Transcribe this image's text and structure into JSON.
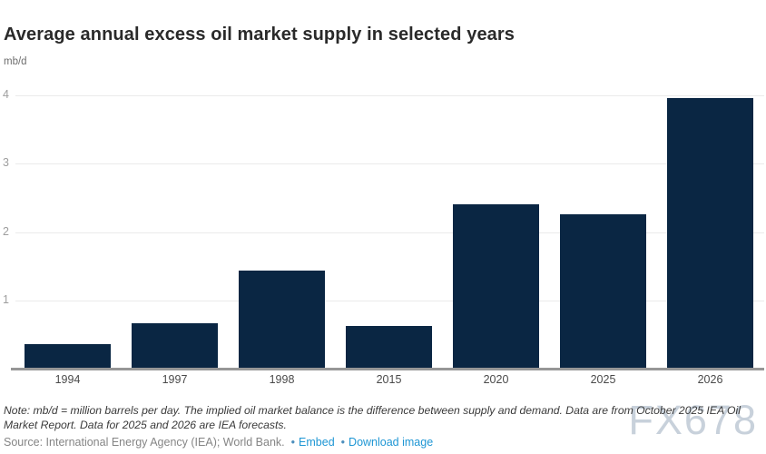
{
  "header": {
    "title": "Average annual excess oil market supply in selected years",
    "unit_label": "mb/d"
  },
  "chart_data": {
    "type": "bar",
    "categories": [
      "1994",
      "1997",
      "1998",
      "2015",
      "2020",
      "2025",
      "2026"
    ],
    "values": [
      0.36,
      0.66,
      1.43,
      0.62,
      2.4,
      2.26,
      3.96
    ],
    "title": "Average annual excess oil market supply in selected years",
    "xlabel": "",
    "ylabel": "mb/d",
    "ylim": [
      0,
      4
    ],
    "yticks": [
      1,
      2,
      3,
      4
    ],
    "grid": "horizontal",
    "legend": "none",
    "bar_color": "#0a2643",
    "gridline_color": "#ebebeb",
    "axis_line_color": "#979797"
  },
  "footer": {
    "note": "Note: mb/d = million barrels per day. The implied oil market balance is the difference between supply and demand. Data are from October 2025 IEA Oil Market Report. Data for 2025 and 2026 are IEA forecasts.",
    "source_prefix": "Source: International Energy Agency (IEA); World Bank.",
    "bullet": "•",
    "links": [
      {
        "label": "Embed"
      },
      {
        "label": "Download image"
      }
    ]
  },
  "watermark": "FX678"
}
